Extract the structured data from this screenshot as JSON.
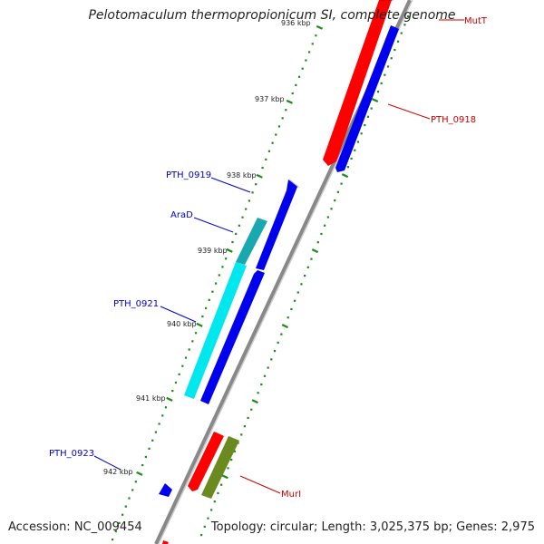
{
  "title": "Pelotomaculum thermopropionicum SI, complete genome",
  "accession": "Accession: NC_009454",
  "summary": "Topology: circular; Length: 3,025,375 bp; Genes: 2,975",
  "colors": {
    "tick": "#1a8a1a",
    "backbone": "#888888",
    "forward_label": "#d00000",
    "reverse_label": "#0000cc",
    "gene_red": "#ff0000",
    "gene_blue": "#0000ee",
    "gene_cyan": "#00e8ee",
    "gene_teal": "#1aa8b0",
    "gene_olive": "#6a8a20"
  },
  "ticks": [
    "936 kbp",
    "937 kbp",
    "938 kbp",
    "939 kbp",
    "940 kbp",
    "941 kbp",
    "942 kbp"
  ],
  "genes": [
    {
      "label": "MutT",
      "strand": "forward",
      "color": "gene_red"
    },
    {
      "label": "PTH_0918",
      "strand": "forward",
      "color": "gene_blue"
    },
    {
      "label": "PTH_0919",
      "strand": "reverse",
      "color": "gene_blue"
    },
    {
      "label": "AraD",
      "strand": "reverse",
      "color": "gene_teal"
    },
    {
      "label": "PTH_0921",
      "strand": "reverse",
      "color": "gene_cyan"
    },
    {
      "label": "PTH_0923",
      "strand": "reverse",
      "color": "gene_blue"
    },
    {
      "label": "MurI",
      "strand": "forward",
      "color": "gene_olive"
    }
  ]
}
